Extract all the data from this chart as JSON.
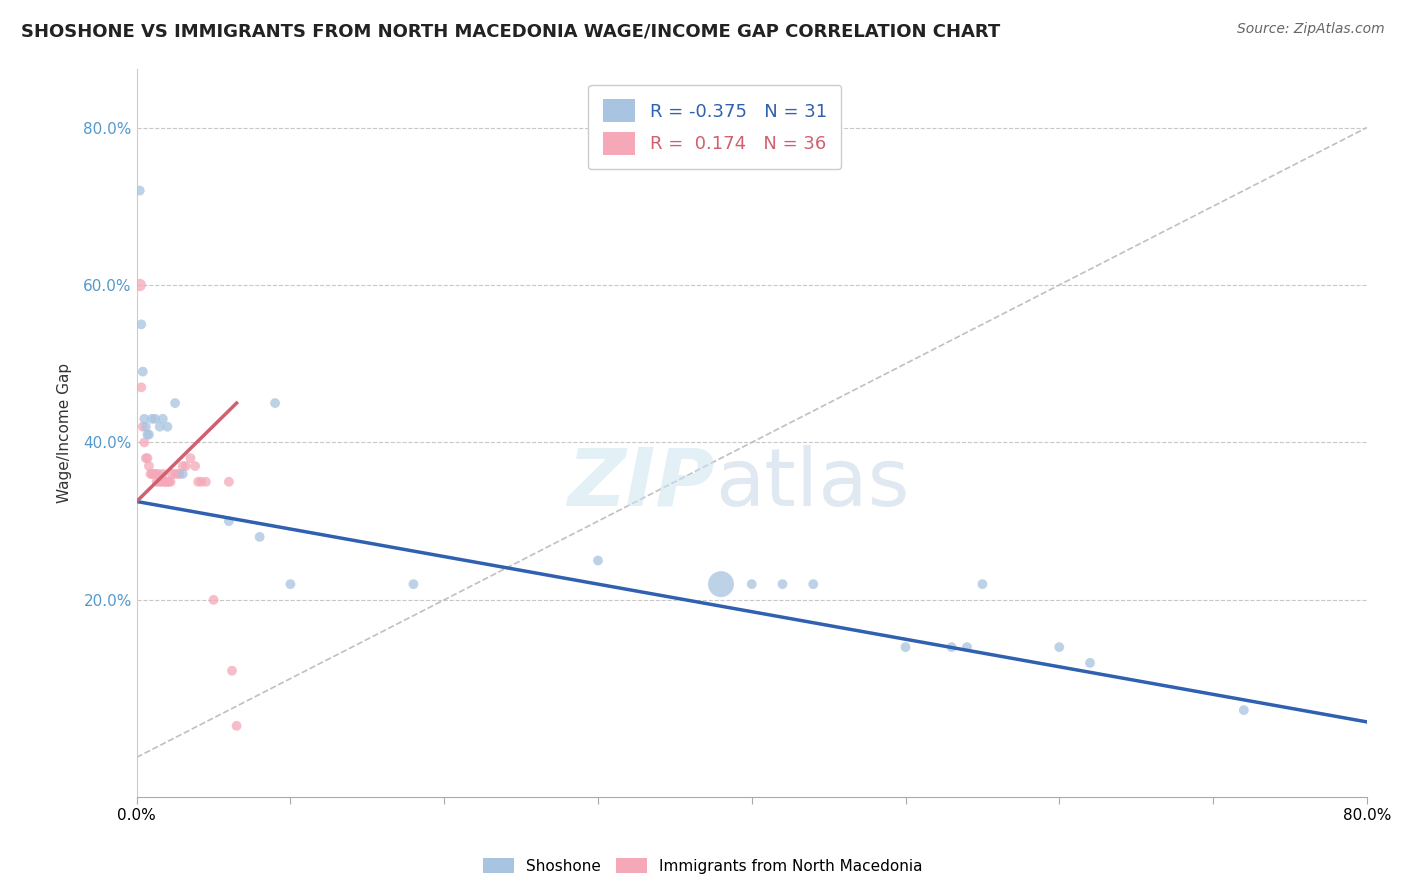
{
  "title": "SHOSHONE VS IMMIGRANTS FROM NORTH MACEDONIA WAGE/INCOME GAP CORRELATION CHART",
  "source": "Source: ZipAtlas.com",
  "ylabel": "Wage/Income Gap",
  "legend_shoshone": "Shoshone",
  "legend_immigrants": "Immigrants from North Macedonia",
  "R_shoshone": -0.375,
  "N_shoshone": 31,
  "R_immigrants": 0.174,
  "N_immigrants": 36,
  "shoshone_color": "#a8c4e0",
  "immigrants_color": "#f4a8b8",
  "shoshone_line_color": "#3060b0",
  "immigrants_line_color": "#d06070",
  "background_color": "#ffffff",
  "xlim": [
    0.0,
    0.8
  ],
  "ylim": [
    -0.05,
    0.875
  ],
  "shoshone_x": [
    0.002,
    0.003,
    0.004,
    0.005,
    0.006,
    0.007,
    0.008,
    0.01,
    0.012,
    0.015,
    0.017,
    0.02,
    0.025,
    0.03,
    0.06,
    0.08,
    0.09,
    0.1,
    0.18,
    0.3,
    0.38,
    0.4,
    0.42,
    0.44,
    0.5,
    0.53,
    0.54,
    0.55,
    0.6,
    0.62,
    0.72
  ],
  "shoshone_y": [
    0.72,
    0.55,
    0.49,
    0.43,
    0.42,
    0.41,
    0.41,
    0.43,
    0.43,
    0.42,
    0.43,
    0.42,
    0.45,
    0.36,
    0.3,
    0.28,
    0.45,
    0.22,
    0.22,
    0.25,
    0.22,
    0.22,
    0.22,
    0.22,
    0.14,
    0.14,
    0.14,
    0.22,
    0.14,
    0.12,
    0.06
  ],
  "shoshone_sizes": [
    50,
    50,
    50,
    50,
    50,
    50,
    50,
    50,
    50,
    50,
    50,
    50,
    50,
    50,
    50,
    50,
    50,
    50,
    50,
    50,
    50,
    50,
    50,
    50,
    50,
    50,
    50,
    50,
    50,
    50,
    50
  ],
  "shoshone_large_idx": 0,
  "immigrants_x": [
    0.002,
    0.003,
    0.004,
    0.005,
    0.006,
    0.007,
    0.008,
    0.009,
    0.01,
    0.011,
    0.012,
    0.013,
    0.014,
    0.015,
    0.016,
    0.017,
    0.018,
    0.019,
    0.02,
    0.021,
    0.022,
    0.023,
    0.025,
    0.027,
    0.028,
    0.03,
    0.032,
    0.035,
    0.038,
    0.04,
    0.042,
    0.045,
    0.05,
    0.06,
    0.062,
    0.065
  ],
  "immigrants_y": [
    0.6,
    0.47,
    0.42,
    0.4,
    0.38,
    0.38,
    0.37,
    0.36,
    0.36,
    0.36,
    0.36,
    0.35,
    0.36,
    0.35,
    0.35,
    0.36,
    0.35,
    0.35,
    0.35,
    0.35,
    0.35,
    0.36,
    0.36,
    0.36,
    0.36,
    0.37,
    0.37,
    0.38,
    0.37,
    0.35,
    0.35,
    0.35,
    0.2,
    0.35,
    0.11,
    0.04
  ],
  "immigrants_sizes": [
    50,
    50,
    50,
    50,
    50,
    50,
    50,
    50,
    50,
    50,
    50,
    50,
    50,
    50,
    50,
    50,
    50,
    50,
    50,
    50,
    50,
    50,
    50,
    50,
    50,
    50,
    50,
    50,
    50,
    50,
    50,
    50,
    50,
    50,
    50,
    50
  ],
  "shoshone_line_x": [
    0.0,
    0.8
  ],
  "shoshone_line_y": [
    0.325,
    0.045
  ],
  "immigrants_line_x": [
    0.0,
    0.065
  ],
  "immigrants_line_y": [
    0.325,
    0.45
  ],
  "diag_line_x": [
    0.0,
    0.8
  ],
  "diag_line_y": [
    0.0,
    0.8
  ],
  "yticks": [
    0.0,
    0.2,
    0.4,
    0.6,
    0.8
  ],
  "ytick_labels": [
    "",
    "20.0%",
    "40.0%",
    "60.0%",
    "80.0%"
  ],
  "xtick_labels": [
    "0.0%",
    "80.0%"
  ]
}
